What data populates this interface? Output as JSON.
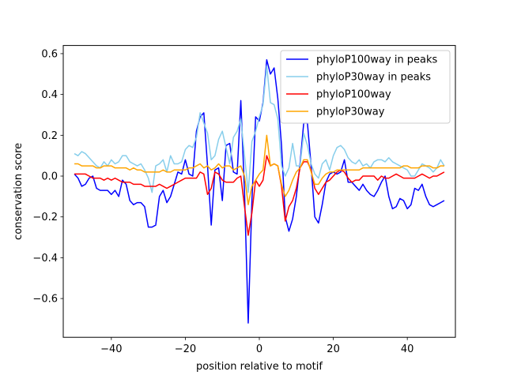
{
  "chart_data": {
    "type": "line",
    "xlabel": "position relative to motif",
    "ylabel": "conservation score",
    "xlim": [
      -53,
      53
    ],
    "ylim": [
      -0.79,
      0.64
    ],
    "xticks": [
      -40,
      -20,
      0,
      20,
      40
    ],
    "yticks": [
      -0.6,
      -0.4,
      -0.2,
      0.0,
      0.2,
      0.4,
      0.6
    ],
    "grid": false,
    "legend_position": "top-right",
    "x_start": -50,
    "series": [
      {
        "name": "phyloP100way in peaks",
        "color": "#0000ff",
        "values": [
          0.01,
          -0.01,
          -0.05,
          -0.04,
          -0.01,
          0.0,
          -0.06,
          -0.07,
          -0.07,
          -0.07,
          -0.09,
          -0.07,
          -0.1,
          -0.02,
          -0.04,
          -0.12,
          -0.14,
          -0.13,
          -0.13,
          -0.15,
          -0.25,
          -0.25,
          -0.24,
          -0.1,
          -0.07,
          -0.13,
          -0.1,
          -0.04,
          0.02,
          0.01,
          0.08,
          0.01,
          0.0,
          0.22,
          0.29,
          0.31,
          0.05,
          -0.24,
          0.03,
          0.04,
          -0.12,
          0.15,
          0.16,
          0.02,
          0.01,
          0.37,
          -0.08,
          -0.72,
          -0.12,
          0.29,
          0.27,
          0.36,
          0.57,
          0.5,
          0.53,
          0.38,
          0.15,
          -0.2,
          -0.27,
          -0.21,
          -0.1,
          0.06,
          0.26,
          0.26,
          0.05,
          -0.2,
          -0.23,
          -0.14,
          -0.03,
          0.01,
          0.02,
          0.01,
          0.02,
          0.08,
          -0.03,
          -0.03,
          -0.05,
          -0.07,
          -0.04,
          -0.07,
          -0.09,
          -0.1,
          -0.07,
          -0.03,
          0.0,
          -0.1,
          -0.16,
          -0.15,
          -0.11,
          -0.12,
          -0.16,
          -0.14,
          -0.06,
          -0.07,
          -0.04,
          -0.1,
          -0.14,
          -0.15,
          -0.14,
          -0.13,
          -0.12
        ]
      },
      {
        "name": "phyloP30way in peaks",
        "color": "#87ceeb",
        "values": [
          0.11,
          0.1,
          0.12,
          0.11,
          0.09,
          0.07,
          0.05,
          0.04,
          0.07,
          0.05,
          0.08,
          0.06,
          0.07,
          0.1,
          0.1,
          0.07,
          0.06,
          0.05,
          0.06,
          0.03,
          -0.01,
          -0.08,
          0.05,
          0.06,
          0.08,
          0.02,
          0.1,
          0.06,
          0.06,
          0.07,
          0.13,
          0.15,
          0.14,
          0.19,
          0.31,
          0.26,
          0.21,
          0.08,
          0.1,
          0.18,
          0.22,
          0.14,
          0.06,
          0.19,
          0.22,
          0.28,
          0.1,
          -0.08,
          0.17,
          0.22,
          0.29,
          0.35,
          0.54,
          0.36,
          0.35,
          0.28,
          0.05,
          0.0,
          0.04,
          0.16,
          0.05,
          0.05,
          0.21,
          0.15,
          0.06,
          0.01,
          -0.01,
          0.06,
          0.08,
          0.03,
          0.1,
          0.14,
          0.15,
          0.13,
          0.09,
          0.07,
          0.06,
          0.08,
          0.05,
          0.06,
          0.04,
          0.07,
          0.08,
          0.08,
          0.07,
          0.09,
          0.07,
          0.06,
          0.05,
          0.04,
          0.03,
          0.0,
          0.0,
          0.03,
          0.06,
          0.05,
          0.04,
          0.02,
          0.04,
          0.08,
          0.05
        ]
      },
      {
        "name": "phyloP100way",
        "color": "#ff0000",
        "values": [
          0.01,
          0.01,
          0.01,
          0.01,
          0.0,
          -0.01,
          -0.01,
          -0.01,
          -0.02,
          -0.01,
          -0.02,
          -0.01,
          -0.02,
          -0.03,
          -0.03,
          -0.03,
          -0.04,
          -0.04,
          -0.04,
          -0.05,
          -0.05,
          -0.05,
          -0.05,
          -0.04,
          -0.05,
          -0.06,
          -0.05,
          -0.04,
          -0.03,
          -0.02,
          -0.01,
          -0.01,
          -0.01,
          -0.01,
          0.02,
          0.01,
          -0.09,
          -0.06,
          0.02,
          0.01,
          -0.02,
          -0.03,
          -0.03,
          -0.03,
          -0.01,
          0.0,
          -0.15,
          -0.29,
          -0.18,
          -0.02,
          -0.05,
          -0.02,
          0.1,
          0.05,
          0.06,
          0.05,
          -0.05,
          -0.22,
          -0.15,
          -0.12,
          -0.06,
          0.04,
          0.07,
          0.07,
          0.03,
          -0.06,
          -0.09,
          -0.06,
          -0.03,
          -0.02,
          -0.0,
          0.02,
          0.03,
          0.02,
          -0.01,
          -0.03,
          -0.02,
          -0.02,
          0.0,
          0.0,
          0.0,
          0.0,
          -0.02,
          0.0,
          -0.01,
          -0.01,
          0.0,
          0.01,
          0.0,
          -0.01,
          -0.01,
          -0.01,
          -0.01,
          0.0,
          0.01,
          0.0,
          -0.01,
          0.0,
          0.0,
          0.01,
          0.02
        ]
      },
      {
        "name": "phyloP30way",
        "color": "#ffa500",
        "values": [
          0.06,
          0.06,
          0.05,
          0.05,
          0.05,
          0.05,
          0.04,
          0.04,
          0.05,
          0.05,
          0.05,
          0.04,
          0.04,
          0.04,
          0.04,
          0.03,
          0.04,
          0.03,
          0.03,
          0.02,
          0.02,
          0.02,
          0.02,
          0.02,
          0.03,
          0.02,
          0.02,
          0.03,
          0.03,
          0.03,
          0.03,
          0.04,
          0.04,
          0.05,
          0.06,
          0.04,
          0.05,
          0.03,
          0.04,
          0.06,
          0.04,
          0.05,
          0.05,
          0.03,
          0.04,
          0.05,
          0.0,
          -0.14,
          -0.05,
          -0.02,
          0.01,
          0.03,
          0.2,
          0.05,
          0.06,
          0.05,
          -0.04,
          -0.1,
          -0.07,
          -0.02,
          0.02,
          0.04,
          0.08,
          0.08,
          0.02,
          -0.04,
          -0.04,
          -0.01,
          0.01,
          0.02,
          0.02,
          0.03,
          0.03,
          0.03,
          0.03,
          0.03,
          0.03,
          0.03,
          0.04,
          0.04,
          0.04,
          0.04,
          0.04,
          0.04,
          0.04,
          0.04,
          0.04,
          0.04,
          0.04,
          0.05,
          0.05,
          0.04,
          0.04,
          0.04,
          0.05,
          0.05,
          0.05,
          0.04,
          0.04,
          0.05,
          0.05
        ]
      }
    ]
  }
}
